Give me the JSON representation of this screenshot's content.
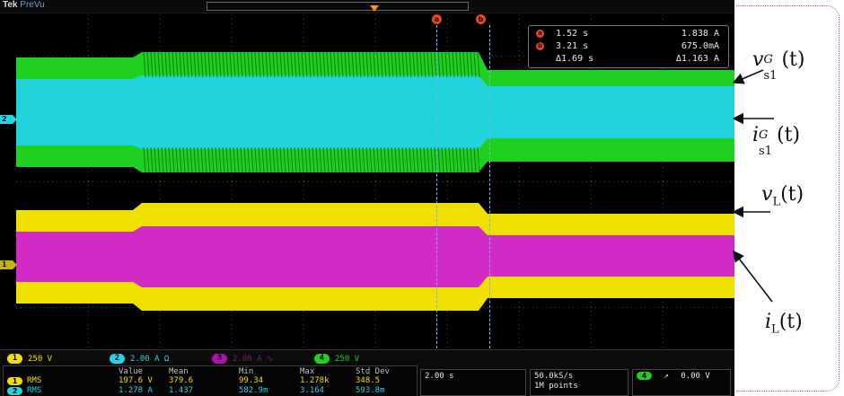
{
  "header": {
    "brand": "Tek",
    "mode": "PreVu"
  },
  "cursors": {
    "a_label": "a",
    "b_label": "b"
  },
  "readout": {
    "a_time": "1.52 s",
    "a_value": "1.838 A",
    "b_time": "3.21 s",
    "b_value": "675.0mA",
    "delta_time": "Δ1.69 s",
    "delta_value": "Δ1.163 A"
  },
  "channels": [
    {
      "num": "1",
      "scale": "250 V",
      "color": "#f0e000"
    },
    {
      "num": "2",
      "scale": "2.00 A Ω",
      "color": "#22d4e6"
    },
    {
      "num": "3",
      "scale": "2.00 A ∿",
      "color": "#d020d0"
    },
    {
      "num": "4",
      "scale": "250 V",
      "color": "#20d020"
    }
  ],
  "measurements": {
    "headers": [
      "Value",
      "Mean",
      "Min",
      "Max",
      "Std Dev"
    ],
    "rows": [
      {
        "ch": "1",
        "type": "RMS",
        "values": [
          "197.6 V",
          "379.6",
          "99.34",
          "1.278k",
          "348.5"
        ]
      },
      {
        "ch": "2",
        "type": "RMS",
        "values": [
          "1.278 A",
          "1.437",
          "582.9m",
          "3.164",
          "593.8m"
        ]
      }
    ]
  },
  "timebase": "2.00 s",
  "acquisition": {
    "rate": "50.0kS/s",
    "points": "1M points"
  },
  "trigger": {
    "ch": "4",
    "slope": "↗",
    "level": "0.00 V"
  },
  "annotations": {
    "vs1G": {
      "base": "v",
      "sup": "G",
      "sub": "s1",
      "arg": "(t)"
    },
    "is1G": {
      "base": "i",
      "sup": "G",
      "sub": "s1",
      "arg": "(t)"
    },
    "vL": {
      "base": "v",
      "sub": "L",
      "arg": "(t)"
    },
    "iL": {
      "base": "i",
      "sub": "L",
      "arg": "(t)"
    }
  }
}
